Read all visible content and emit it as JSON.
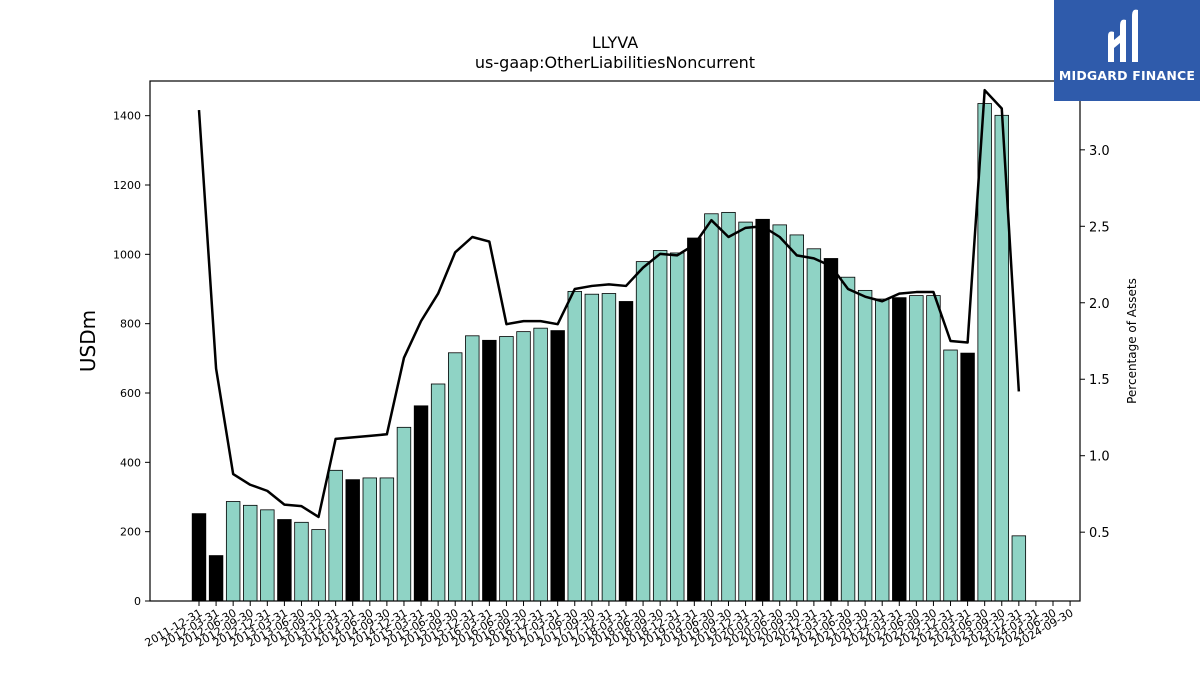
{
  "brand": {
    "name": "MIDGARD FINANCE",
    "bg_color": "#2f5bab"
  },
  "chart_data": {
    "type": "bar",
    "title": "LLYVA",
    "subtitle": "us-gaap:OtherLiabilitiesNoncurrent",
    "ylabel": "USDm",
    "y2label": "Percentage of Assets",
    "ylim": [
      0,
      1500
    ],
    "y2lim": [
      0.05,
      3.45
    ],
    "yticks": [
      0,
      200,
      400,
      600,
      800,
      1000,
      1200,
      1400
    ],
    "y2ticks": [
      0.5,
      1.0,
      1.5,
      2.0,
      2.5,
      3.0
    ],
    "grid": false,
    "colors": {
      "bar": "#8fd3c5",
      "highlight": "#000000",
      "line": "#000000"
    },
    "categories": [
      "2011-12-31",
      "2012-03-31",
      "2012-06-30",
      "2012-09-30",
      "2012-12-31",
      "2013-03-31",
      "2013-06-30",
      "2013-09-30",
      "2013-12-31",
      "2014-03-31",
      "2014-06-30",
      "2014-09-30",
      "2014-12-31",
      "2015-03-31",
      "2015-06-30",
      "2015-09-30",
      "2015-12-31",
      "2016-03-31",
      "2016-06-30",
      "2016-09-30",
      "2016-12-31",
      "2017-03-31",
      "2017-06-30",
      "2017-09-30",
      "2017-12-31",
      "2018-03-31",
      "2018-06-30",
      "2018-09-30",
      "2018-12-31",
      "2019-03-31",
      "2019-06-30",
      "2019-09-30",
      "2019-12-31",
      "2020-03-31",
      "2020-06-30",
      "2020-09-30",
      "2020-12-31",
      "2021-03-31",
      "2021-06-30",
      "2021-09-30",
      "2021-12-31",
      "2022-03-31",
      "2022-06-30",
      "2022-09-30",
      "2022-12-31",
      "2023-03-31",
      "2023-06-30",
      "2023-09-30",
      "2023-12-31",
      "2024-03-31",
      "2024-06-30",
      "2024-09-30"
    ],
    "tick_labels": [
      "2011-12-31",
      "2012-03-31",
      "2012-06-30",
      "2012-09-30",
      "2012-12-31",
      "2013-03-31",
      "2013-06-30",
      "2013-09-30",
      "2013-12-31",
      "2014-03-31",
      "2014-06-30",
      "2014-09-30",
      "2014-12-31",
      "2015-03-31",
      "2015-06-30",
      "2015-09-30",
      "2015-12-31",
      "2016-03-31",
      "2016-06-30",
      "2016-09-30",
      "2016-12-31",
      "2017-03-31",
      "2017-06-30",
      "2017-09-30",
      "2017-12-31",
      "2018-03-31",
      "2018-06-30",
      "2018-09-30",
      "2018-12-31",
      "2019-03-31",
      "2019-06-30",
      "2019-09-30",
      "2019-12-31",
      "2020-03-31",
      "2020-06-30",
      "2020-09-30",
      "2020-12-31",
      "2021-03-31",
      "2021-06-30",
      "2021-09-30",
      "2021-12-31",
      "2022-03-31",
      "2022-06-30",
      "2022-09-30",
      "2022-12-31",
      "2023-03-31",
      "2023-06-30",
      "2023-09-30",
      "2023-12-31",
      "2024-03-31",
      "2024-06-30",
      "2024-09-30"
    ],
    "values": [
      252,
      131,
      287,
      276,
      263,
      235,
      227,
      206,
      377,
      350,
      355,
      355,
      501,
      563,
      626,
      716,
      765,
      752,
      763,
      777,
      787,
      780,
      893,
      885,
      887,
      864,
      979,
      1011,
      1004,
      1047,
      1117,
      1121,
      1093,
      1101,
      1085,
      1056,
      1016,
      988,
      934,
      896,
      871,
      875,
      881,
      881,
      724,
      715,
      1435,
      1401,
      188,
      null,
      null,
      null
    ],
    "highlight": [
      true,
      true,
      false,
      false,
      false,
      true,
      false,
      false,
      false,
      true,
      false,
      false,
      false,
      true,
      false,
      false,
      false,
      true,
      false,
      false,
      false,
      true,
      false,
      false,
      false,
      true,
      false,
      false,
      false,
      true,
      false,
      false,
      false,
      true,
      false,
      false,
      false,
      true,
      false,
      false,
      false,
      true,
      false,
      false,
      false,
      true,
      false,
      false,
      false,
      false,
      false,
      false
    ],
    "pct_assets": [
      3.26,
      1.57,
      0.88,
      0.81,
      0.77,
      0.68,
      0.67,
      0.6,
      1.11,
      1.12,
      1.13,
      1.14,
      1.64,
      1.88,
      2.06,
      2.33,
      2.43,
      2.4,
      1.86,
      1.88,
      1.88,
      1.86,
      2.09,
      2.11,
      2.12,
      2.11,
      2.23,
      2.32,
      2.31,
      2.38,
      2.54,
      2.43,
      2.49,
      2.5,
      2.43,
      2.31,
      2.29,
      2.24,
      2.09,
      2.04,
      2.01,
      2.06,
      2.07,
      2.07,
      1.75,
      1.74,
      3.39,
      3.27,
      1.42,
      null,
      null,
      null
    ]
  }
}
